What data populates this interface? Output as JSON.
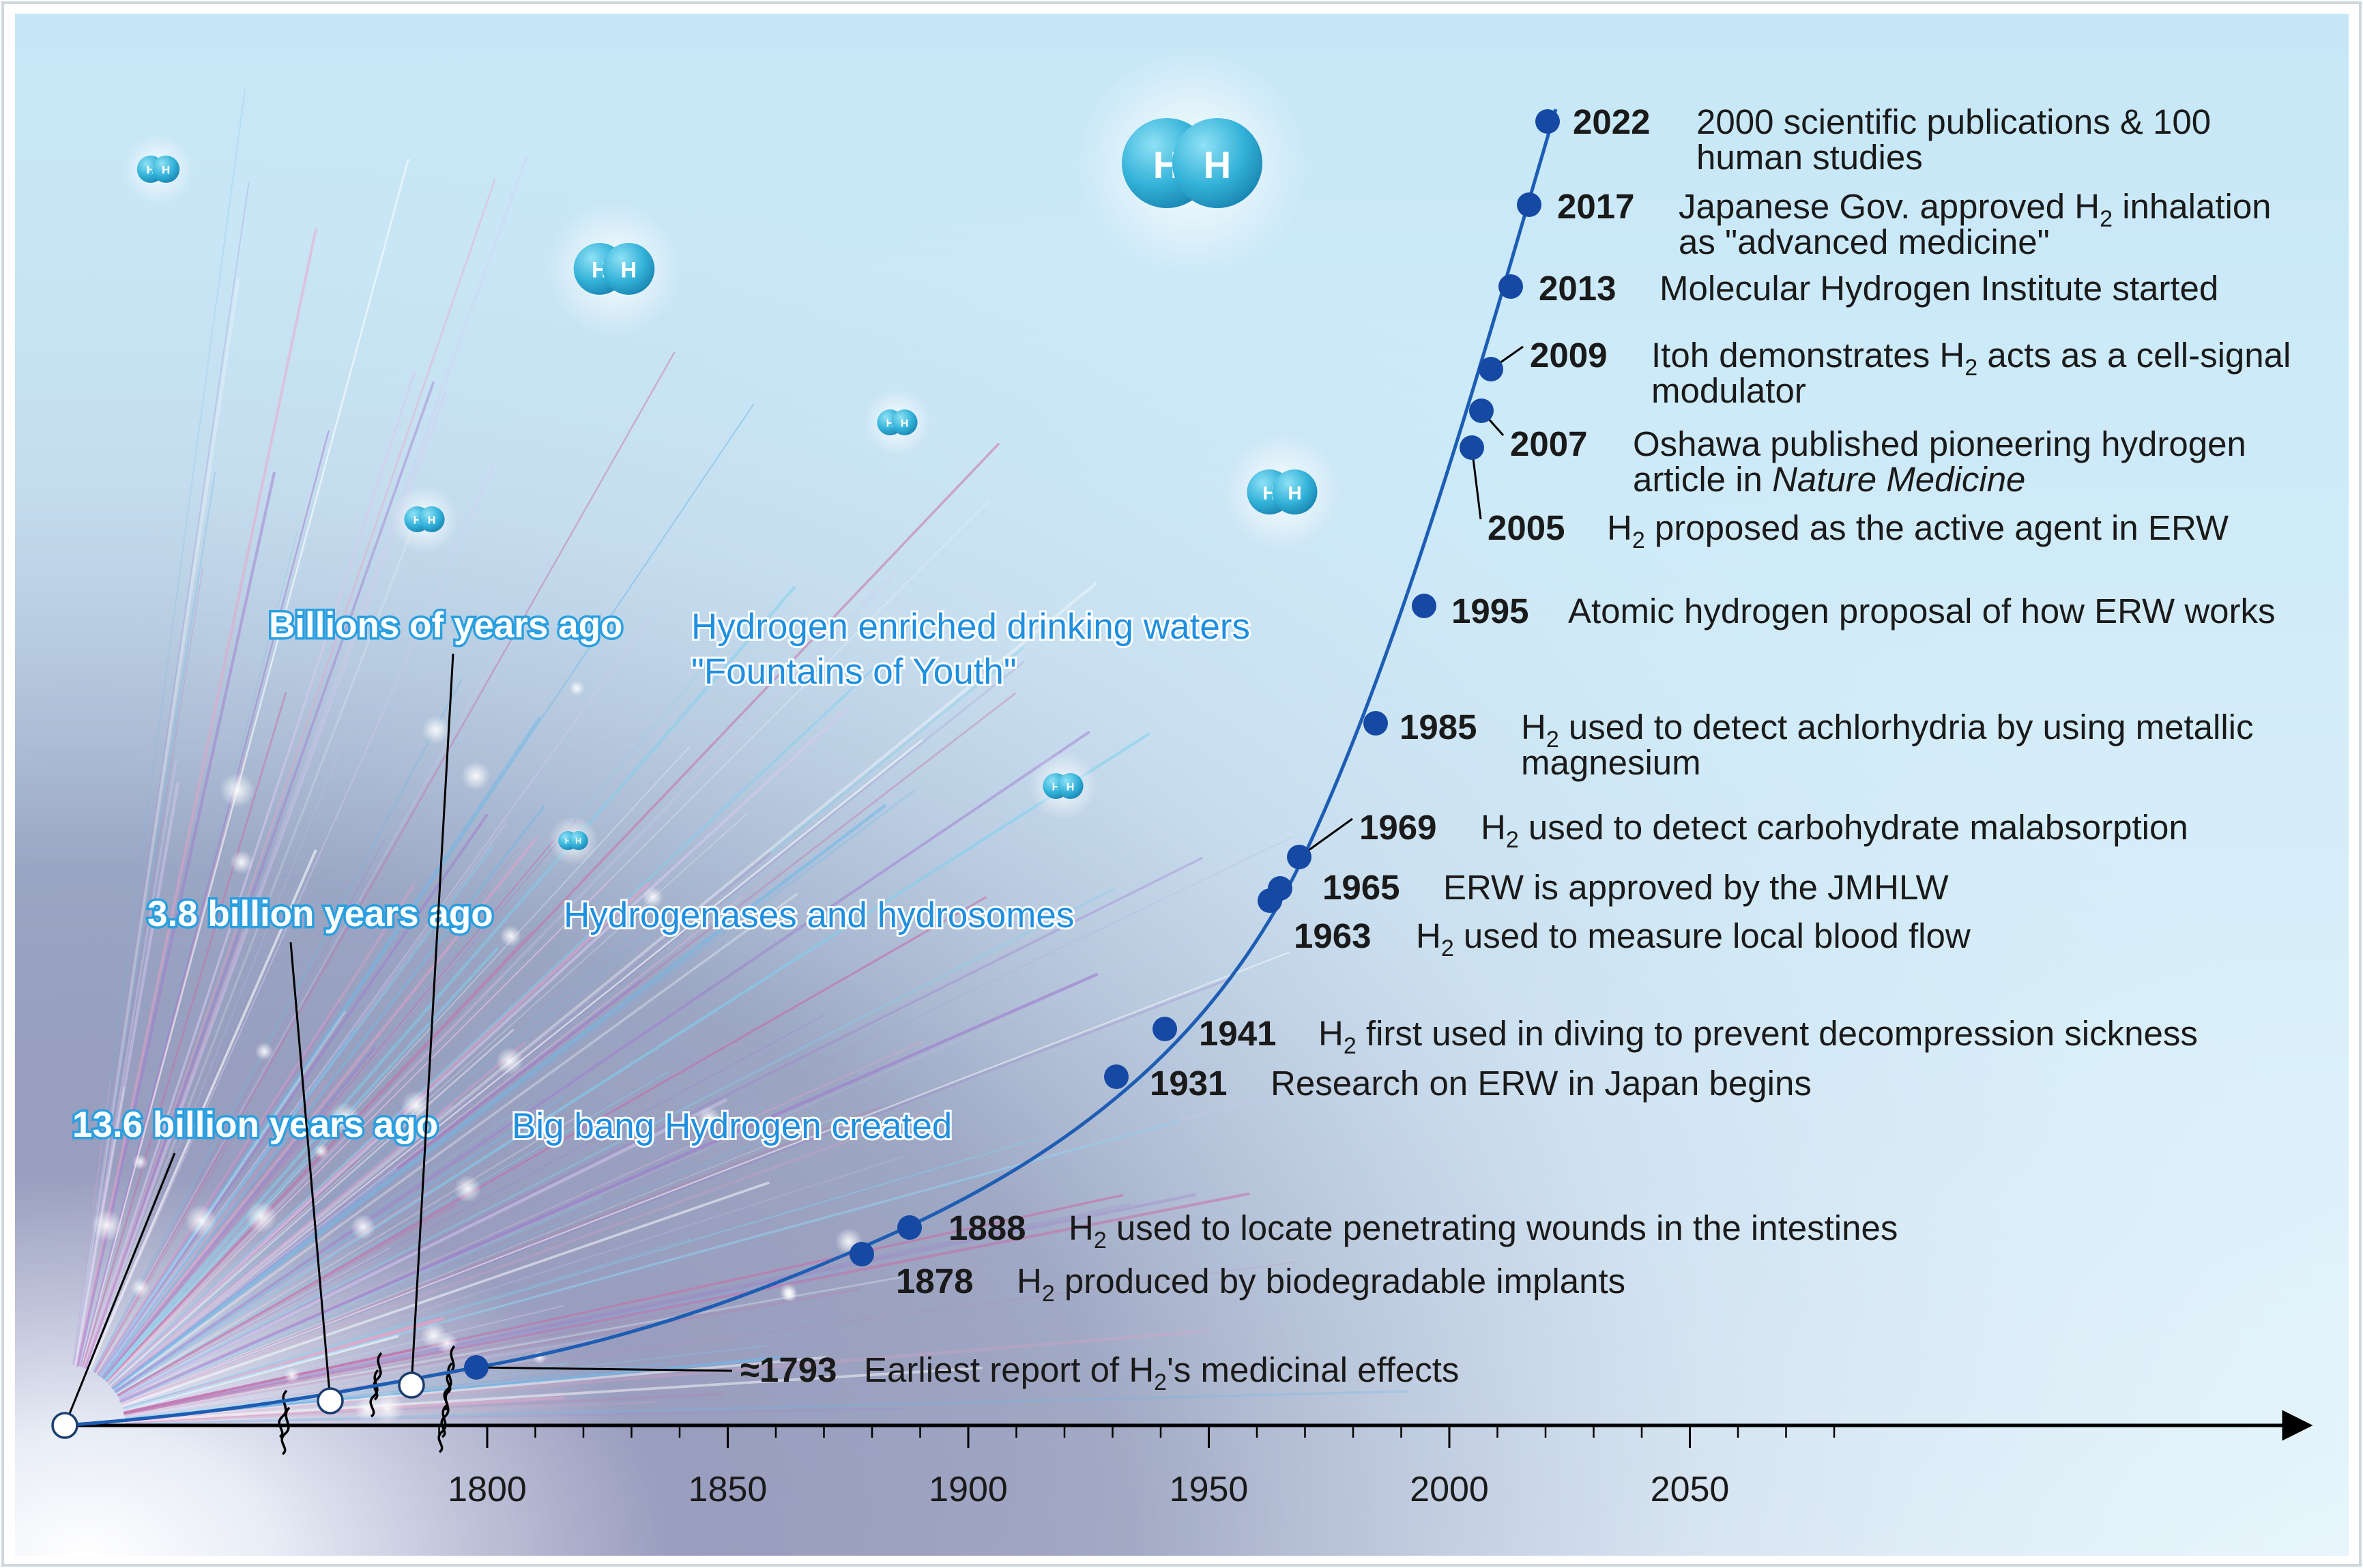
{
  "colors": {
    "background_top": "#c9e9f8",
    "background_bottom": "#eaf6fc",
    "timeline_dot": "#1549a3",
    "curve": "#1d5db4",
    "era_label_glow": "#2a9fe0",
    "era_desc": "#1f8fe0",
    "axis": "#000000"
  },
  "molecule": {
    "atom_letter": "H",
    "fill": "#3db4d8"
  },
  "axis": {
    "ticks": [
      "1800",
      "1850",
      "1900",
      "1950",
      "2000",
      "2050"
    ]
  },
  "eras": [
    {
      "label": "13.6 billion years ago",
      "desc": "Big bang Hydrogen created"
    },
    {
      "label": "3.8 billion years ago",
      "desc": "Hydrogenases and hydrosomes"
    },
    {
      "label": "Billions of years ago",
      "desc": "Hydrogen enriched drinking waters",
      "desc2": "\"Fountains of Youth\""
    }
  ],
  "events": [
    {
      "year": "≈1793",
      "pre": "Earliest report of H",
      "sub": "2",
      "post": "'s medicinal effects",
      "line2": ""
    },
    {
      "year": "1878",
      "pre": "H",
      "sub": "2",
      "post": " produced by biodegradable implants",
      "line2": ""
    },
    {
      "year": "1888",
      "pre": "H",
      "sub": "2",
      "post": " used to locate penetrating wounds in the intestines",
      "line2": ""
    },
    {
      "year": "1931",
      "pre": "Research on ERW in Japan begins",
      "sub": "",
      "post": "",
      "line2": ""
    },
    {
      "year": "1941",
      "pre": "H",
      "sub": "2",
      "post": " first used in diving to prevent decompression sickness",
      "line2": ""
    },
    {
      "year": "1963",
      "pre": "H",
      "sub": "2",
      "post": " used to measure local blood flow",
      "line2": ""
    },
    {
      "year": "1965",
      "pre": "ERW is approved by the JMHLW",
      "sub": "",
      "post": "",
      "line2": ""
    },
    {
      "year": "1969",
      "pre": "H",
      "sub": "2",
      "post": " used to detect carbohydrate malabsorption",
      "line2": ""
    },
    {
      "year": "1985",
      "pre": "H",
      "sub": "2",
      "post": " used to detect achlorhydria by using metallic",
      "line2": "magnesium"
    },
    {
      "year": "1995",
      "pre": "Atomic hydrogen proposal of how ERW works",
      "sub": "",
      "post": "",
      "line2": ""
    },
    {
      "year": "2005",
      "pre": "H",
      "sub": "2",
      "post": " proposed as the active agent in ERW",
      "line2": ""
    },
    {
      "year": "2007",
      "pre": "Oshawa published pioneering hydrogen",
      "sub": "",
      "post": "",
      "line2": "article in ",
      "line2_italic": "Nature Medicine"
    },
    {
      "year": "2009",
      "pre": "Itoh demonstrates H",
      "sub": "2",
      "post": " acts as a cell-signal",
      "line2": "modulator"
    },
    {
      "year": "2013",
      "pre": "Molecular Hydrogen Institute started",
      "sub": "",
      "post": "",
      "line2": ""
    },
    {
      "year": "2017",
      "pre": "Japanese Gov. approved H",
      "sub": "2",
      "post": " inhalation",
      "line2": "as \"advanced medicine\""
    },
    {
      "year": "2022",
      "pre": "2000 scientific publications & 100",
      "sub": "",
      "post": "",
      "line2": "human studies"
    }
  ]
}
